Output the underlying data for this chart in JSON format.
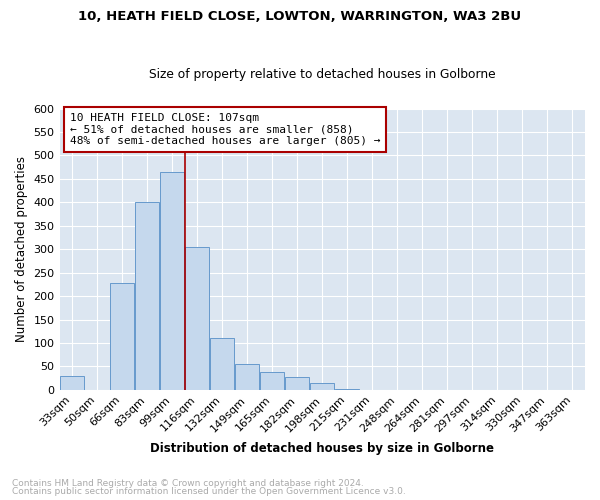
{
  "title1": "10, HEATH FIELD CLOSE, LOWTON, WARRINGTON, WA3 2BU",
  "title2": "Size of property relative to detached houses in Golborne",
  "xlabel": "Distribution of detached houses by size in Golborne",
  "ylabel": "Number of detached properties",
  "categories": [
    "33sqm",
    "50sqm",
    "66sqm",
    "83sqm",
    "99sqm",
    "116sqm",
    "132sqm",
    "149sqm",
    "165sqm",
    "182sqm",
    "198sqm",
    "215sqm",
    "231sqm",
    "248sqm",
    "264sqm",
    "281sqm",
    "297sqm",
    "314sqm",
    "330sqm",
    "347sqm",
    "363sqm"
  ],
  "values": [
    30,
    0,
    228,
    400,
    465,
    305,
    110,
    55,
    38,
    28,
    14,
    2,
    0,
    0,
    0,
    0,
    0,
    0,
    0,
    0,
    0
  ],
  "bar_color": "#c5d8ed",
  "bar_edge_color": "#6699cc",
  "vline_x": 4.5,
  "vline_color": "#aa0000",
  "annotation_line1": "10 HEATH FIELD CLOSE: 107sqm",
  "annotation_line2": "← 51% of detached houses are smaller (858)",
  "annotation_line3": "48% of semi-detached houses are larger (805) →",
  "annotation_box_color": "#ffffff",
  "annotation_box_edge": "#aa0000",
  "footnote1": "Contains HM Land Registry data © Crown copyright and database right 2024.",
  "footnote2": "Contains public sector information licensed under the Open Government Licence v3.0.",
  "ylim": [
    0,
    600
  ],
  "yticks": [
    0,
    50,
    100,
    150,
    200,
    250,
    300,
    350,
    400,
    450,
    500,
    550,
    600
  ],
  "bg_color": "#dce6f1",
  "grid_color": "#ffffff",
  "footnote_color": "#aaaaaa"
}
